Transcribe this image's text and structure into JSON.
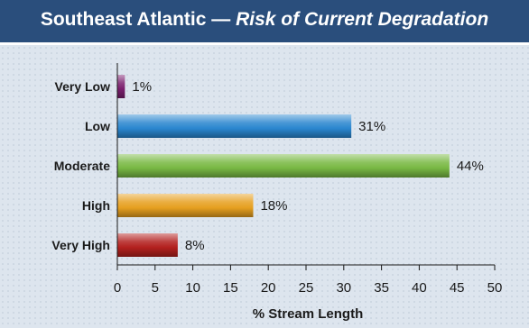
{
  "header": {
    "title": "Southeast Atlantic",
    "separator": "—",
    "subtitle": "Risk of Current Degradation"
  },
  "chart_data": {
    "type": "bar",
    "orientation": "horizontal",
    "categories": [
      "Very Low",
      "Low",
      "Moderate",
      "High",
      "Very High"
    ],
    "values": [
      1,
      31,
      44,
      18,
      8
    ],
    "value_labels": [
      "1%",
      "31%",
      "44%",
      "18%",
      "8%"
    ],
    "colors": [
      "#7b1f6e",
      "#2a86cf",
      "#78b843",
      "#e6a020",
      "#b3201e"
    ],
    "xlabel": "% Stream Length",
    "xlim": [
      0,
      50
    ],
    "xticks": [
      0,
      5,
      10,
      15,
      20,
      25,
      30,
      35,
      40,
      45,
      50
    ],
    "grid": false
  }
}
